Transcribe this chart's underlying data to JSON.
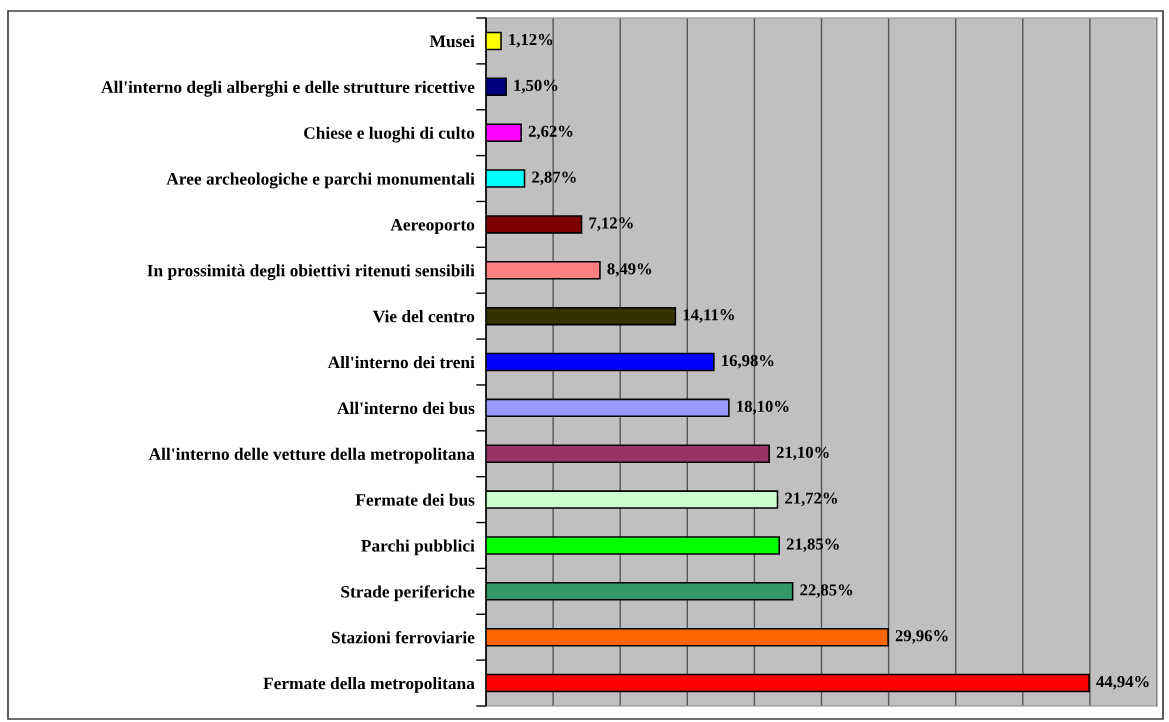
{
  "chart_data": {
    "type": "bar",
    "orientation": "horizontal",
    "categories": [
      "Musei",
      "All'interno degli alberghi e delle strutture ricettive",
      "Chiese e luoghi di culto",
      "Aree archeologiche e parchi monumentali",
      "Aereoporto",
      "In prossimità degli obiettivi ritenuti sensibili",
      "Vie del centro",
      "All'interno dei treni",
      "All'interno dei bus",
      "All'interno delle vetture della metropolitana",
      "Fermate dei bus",
      "Parchi pubblici",
      "Strade periferiche",
      "Stazioni ferroviarie",
      "Fermate della metropolitana"
    ],
    "values": [
      1.12,
      1.5,
      2.62,
      2.87,
      7.12,
      8.49,
      14.11,
      16.98,
      18.1,
      21.1,
      21.72,
      21.85,
      22.85,
      29.96,
      44.94
    ],
    "colors": [
      "#ffff00",
      "#000080",
      "#ff00ff",
      "#00ffff",
      "#800000",
      "#ff8080",
      "#333300",
      "#0000ff",
      "#9999ff",
      "#993366",
      "#ccffcc",
      "#00ff00",
      "#339966",
      "#ff6600",
      "#ff0000"
    ],
    "value_labels": [
      "1,12%",
      "1,50%",
      "2,62%",
      "2,87%",
      "7,12%",
      "8,49%",
      "14,11%",
      "16,98%",
      "18,10%",
      "21,10%",
      "21,72%",
      "21,85%",
      "22,85%",
      "29,96%",
      "44,94%"
    ],
    "xlim": [
      0,
      50
    ],
    "xticks": [
      {
        "value": 0,
        "label": null
      },
      {
        "value": 5,
        "label": null
      },
      {
        "value": 10,
        "label": null
      },
      {
        "value": 15,
        "label": null
      },
      {
        "value": 20,
        "label": null
      },
      {
        "value": 25,
        "label": null
      },
      {
        "value": 30,
        "label": null
      },
      {
        "value": 35,
        "label": null
      },
      {
        "value": 40,
        "label": null
      },
      {
        "value": 45,
        "label": null
      },
      {
        "value": 50,
        "label": null
      }
    ],
    "grid": "x",
    "tick_labels": "y"
  }
}
